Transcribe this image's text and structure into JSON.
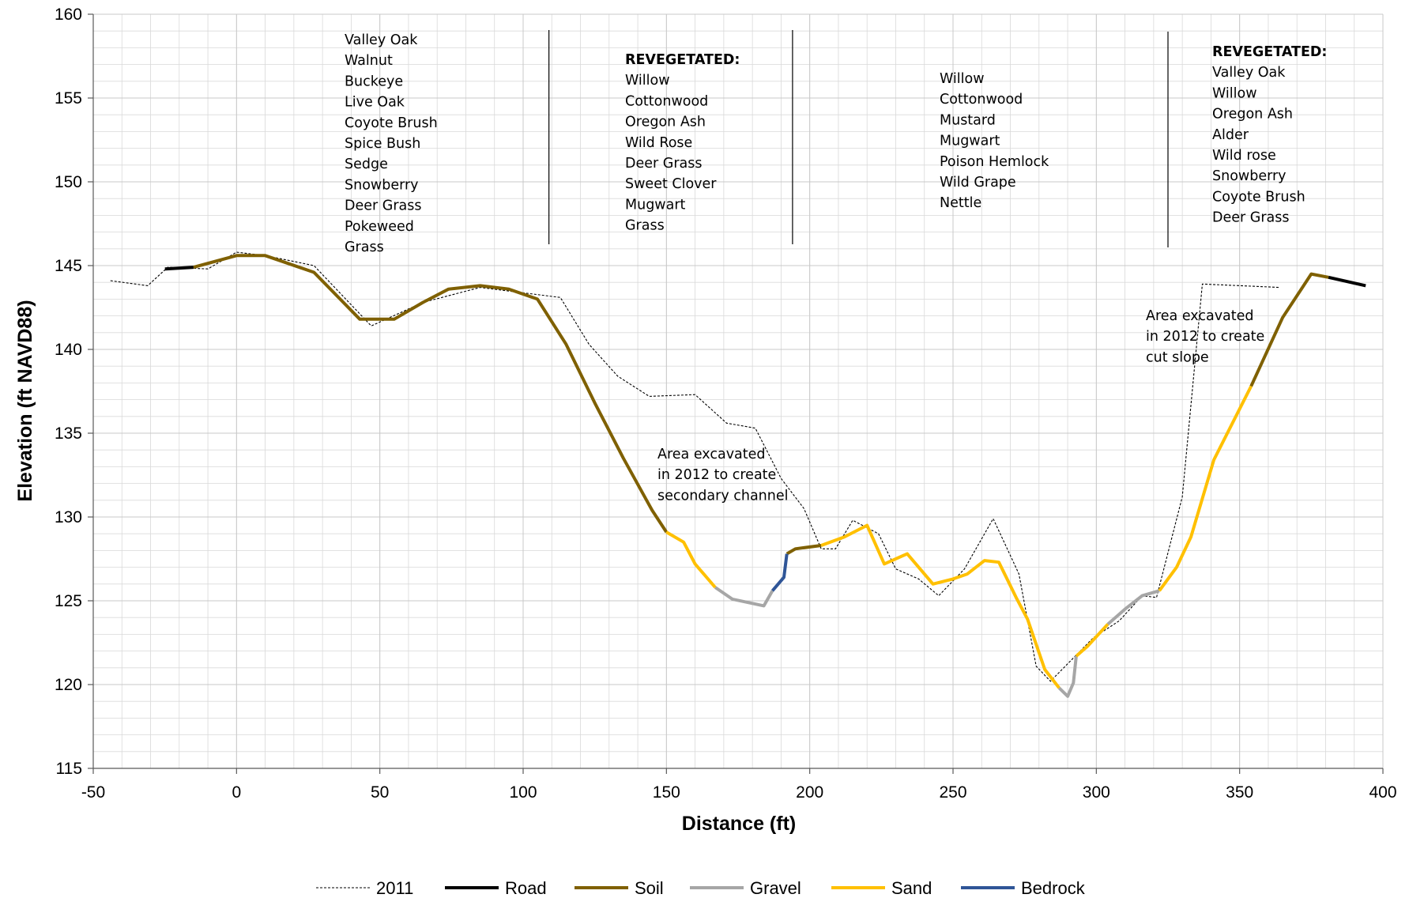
{
  "chart_data": {
    "type": "line",
    "xlabel": "Distance (ft)",
    "ylabel": "Elevation (ft NAVD88)",
    "xlim": [
      -50,
      400
    ],
    "ylim": [
      115,
      160
    ],
    "x_ticks": [
      -50,
      0,
      50,
      100,
      150,
      200,
      250,
      300,
      350,
      400
    ],
    "y_ticks": [
      115,
      120,
      125,
      130,
      135,
      140,
      145,
      150,
      155,
      160
    ],
    "grid": true,
    "legend_position": "bottom",
    "legend": [
      "2011",
      "Road",
      "Soil",
      "Gravel",
      "Sand",
      "Bedrock"
    ],
    "colors": {
      "2011": "#000000",
      "Road": "#000000",
      "Soil": "#7f6000",
      "Gravel": "#a6a6a6",
      "Sand": "#ffc000",
      "Bedrock": "#2f5597",
      "grid": "#d9d9d9"
    },
    "reference_2011": [
      [
        -44,
        144.1
      ],
      [
        -31,
        143.8
      ],
      [
        -24,
        144.9
      ],
      [
        -10,
        144.8
      ],
      [
        0,
        145.8
      ],
      [
        10,
        145.6
      ],
      [
        27,
        145.0
      ],
      [
        47,
        141.4
      ],
      [
        65,
        142.8
      ],
      [
        85,
        143.7
      ],
      [
        113,
        143.1
      ],
      [
        123,
        140.3
      ],
      [
        133,
        138.4
      ],
      [
        144,
        137.2
      ],
      [
        160,
        137.3
      ],
      [
        171,
        135.6
      ],
      [
        181,
        135.3
      ],
      [
        190,
        132.3
      ],
      [
        198,
        130.5
      ],
      [
        204,
        128.1
      ],
      [
        209,
        128.1
      ],
      [
        215,
        129.8
      ],
      [
        224,
        129.0
      ],
      [
        230,
        126.9
      ],
      [
        238,
        126.3
      ],
      [
        245,
        125.3
      ],
      [
        254,
        126.9
      ],
      [
        264,
        129.9
      ],
      [
        273,
        126.6
      ],
      [
        279,
        121.1
      ],
      [
        284,
        120.2
      ],
      [
        299,
        122.8
      ],
      [
        308,
        123.8
      ],
      [
        316,
        125.3
      ],
      [
        321,
        125.2
      ],
      [
        330,
        131.2
      ],
      [
        337,
        143.9
      ],
      [
        364,
        143.7
      ]
    ],
    "series": [
      {
        "name": "Road",
        "segments": [
          [
            [
              -25,
              144.8
            ],
            [
              -15,
              144.9
            ]
          ],
          [
            [
              381,
              144.3
            ],
            [
              394,
              143.8
            ]
          ]
        ]
      },
      {
        "name": "Soil",
        "segments": [
          [
            [
              -15,
              144.9
            ],
            [
              0,
              145.6
            ],
            [
              10,
              145.6
            ],
            [
              27,
              144.6
            ],
            [
              43,
              141.8
            ],
            [
              55,
              141.8
            ],
            [
              65,
              142.8
            ],
            [
              74,
              143.6
            ],
            [
              85,
              143.8
            ],
            [
              95,
              143.6
            ],
            [
              105,
              143.0
            ],
            [
              115,
              140.3
            ],
            [
              125,
              136.8
            ],
            [
              135,
              133.5
            ],
            [
              145,
              130.4
            ],
            [
              150,
              129.1
            ]
          ],
          [
            [
              192,
              127.8
            ],
            [
              195,
              128.1
            ],
            [
              204,
              128.3
            ]
          ],
          [
            [
              354,
              137.8
            ],
            [
              365,
              141.9
            ],
            [
              375,
              144.5
            ],
            [
              381,
              144.3
            ]
          ]
        ]
      },
      {
        "name": "Gravel",
        "segments": [
          [
            [
              167,
              125.8
            ],
            [
              173,
              125.1
            ],
            [
              184,
              124.7
            ],
            [
              187,
              125.6
            ]
          ],
          [
            [
              287,
              119.8
            ],
            [
              290,
              119.3
            ],
            [
              292,
              120.1
            ],
            [
              293,
              121.7
            ]
          ],
          [
            [
              304,
              123.6
            ],
            [
              310,
              124.5
            ],
            [
              316,
              125.3
            ],
            [
              322,
              125.6
            ]
          ]
        ]
      },
      {
        "name": "Sand",
        "segments": [
          [
            [
              150,
              129.1
            ],
            [
              156,
              128.5
            ],
            [
              160,
              127.2
            ],
            [
              167,
              125.8
            ]
          ],
          [
            [
              204,
              128.3
            ],
            [
              212,
              128.8
            ],
            [
              220,
              129.5
            ],
            [
              226,
              127.2
            ],
            [
              234,
              127.8
            ],
            [
              243,
              126.0
            ],
            [
              250,
              126.3
            ],
            [
              255,
              126.6
            ],
            [
              261,
              127.4
            ],
            [
              266,
              127.3
            ],
            [
              272,
              125.2
            ],
            [
              276,
              123.9
            ],
            [
              282,
              120.9
            ],
            [
              287,
              119.8
            ]
          ],
          [
            [
              293,
              121.7
            ],
            [
              297,
              122.3
            ],
            [
              304,
              123.6
            ]
          ],
          [
            [
              322,
              125.6
            ],
            [
              328,
              127.0
            ],
            [
              333,
              128.8
            ],
            [
              341,
              133.4
            ],
            [
              354,
              137.8
            ]
          ]
        ]
      },
      {
        "name": "Bedrock",
        "segments": [
          [
            [
              187,
              125.6
            ],
            [
              191,
              126.4
            ],
            [
              192,
              127.8
            ]
          ]
        ]
      }
    ],
    "dividers": [
      109,
      194,
      325
    ],
    "annotations": {
      "zone1": [
        "Valley Oak",
        "Walnut",
        "Buckeye",
        "Live Oak",
        "Coyote Brush",
        "Spice Bush",
        "Sedge",
        "Snowberry",
        "Deer Grass",
        "Pokeweed",
        "Grass"
      ],
      "zone2_heading": "REVEGETATED:",
      "zone2": [
        "Willow",
        "Cottonwood",
        "Oregon Ash",
        "Wild Rose",
        "Deer Grass",
        "Sweet Clover",
        "Mugwart",
        "Grass"
      ],
      "zone3": [
        "Willow",
        "Cottonwood",
        "Mustard",
        "Mugwart",
        "Poison Hemlock",
        "Wild Grape",
        "Nettle"
      ],
      "zone4_heading": "REVEGETATED:",
      "zone4": [
        "Valley Oak",
        "Willow",
        "Oregon Ash",
        "Alder",
        "Wild rose",
        "Snowberry",
        "Coyote Brush",
        "Deer Grass"
      ],
      "excavation_note_1": [
        "Area excavated",
        "in 2012 to create",
        "secondary channel"
      ],
      "excavation_note_2": [
        "Area excavated",
        "in 2012 to create",
        "cut slope"
      ]
    }
  }
}
